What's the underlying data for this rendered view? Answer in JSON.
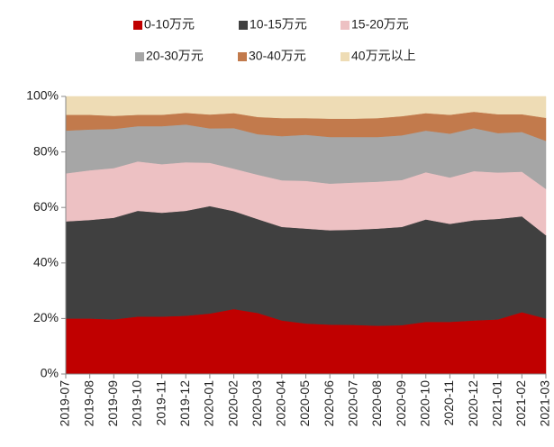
{
  "chart_data": {
    "type": "stacked_area",
    "categories": [
      "2019-07",
      "2019-08",
      "2019-09",
      "2019-10",
      "2019-11",
      "2019-12",
      "2020-01",
      "2020-02",
      "2020-03",
      "2020-04",
      "2020-05",
      "2020-06",
      "2020-07",
      "2020-08",
      "2020-09",
      "2020-10",
      "2020-11",
      "2020-12",
      "2021-01",
      "2021-02",
      "2021-03"
    ],
    "series": [
      {
        "name": "0-10万元",
        "color": "#c00000",
        "values": [
          20,
          20,
          19.7,
          20.7,
          20.7,
          21,
          21.8,
          23.4,
          22,
          19.3,
          18.2,
          17.8,
          17.7,
          17.4,
          17.6,
          18.8,
          18.8,
          19.3,
          19.7,
          22.3,
          20
        ]
      },
      {
        "name": "10-15万元",
        "color": "#404040",
        "values": [
          35,
          35.5,
          36.6,
          38.1,
          37.4,
          37.8,
          38.7,
          35.3,
          33.8,
          33.7,
          34.2,
          34,
          34.3,
          35,
          35.4,
          36.9,
          35.3,
          36.1,
          36.2,
          34.5,
          30
        ]
      },
      {
        "name": "15-20万元",
        "color": "#edc1c3",
        "values": [
          17.3,
          17.9,
          17.9,
          17.8,
          17.5,
          17.5,
          15.6,
          15.3,
          16,
          16.8,
          17.2,
          16.8,
          17,
          16.9,
          16.9,
          17,
          16.7,
          17.7,
          16.7,
          16.1,
          16.7
        ]
      },
      {
        "name": "20-30万元",
        "color": "#a6a6a6",
        "values": [
          15.4,
          14.7,
          14.1,
          12.7,
          13.7,
          13.6,
          12.4,
          14.6,
          14.6,
          15.9,
          16.6,
          16.8,
          16.4,
          16.1,
          16.1,
          15,
          15.8,
          15.5,
          14.2,
          14.3,
          17.3
        ]
      },
      {
        "name": "30-40万元",
        "color": "#c27a4c",
        "values": [
          5.7,
          5.3,
          4.7,
          4.1,
          4.1,
          4.2,
          5,
          5.4,
          6.2,
          6.5,
          6,
          6.6,
          6.6,
          6.8,
          6.9,
          6.3,
          6.8,
          5.9,
          6.8,
          6.4,
          8.3
        ]
      },
      {
        "name": "40万元以上",
        "color": "#eedcb5",
        "values": [
          6.6,
          6.6,
          7,
          6.6,
          6.6,
          5.9,
          6.5,
          6,
          7.4,
          7.8,
          7.8,
          8,
          8,
          7.8,
          7.1,
          6,
          6.6,
          5.5,
          6.4,
          6.4,
          7.7
        ]
      }
    ],
    "ylim": [
      0,
      100
    ],
    "yticks": [
      {
        "value": 0,
        "label": "0%"
      },
      {
        "value": 20,
        "label": "20%"
      },
      {
        "value": 40,
        "label": "40%"
      },
      {
        "value": 60,
        "label": "60%"
      },
      {
        "value": 80,
        "label": "80%"
      },
      {
        "value": 100,
        "label": "100%"
      }
    ]
  }
}
